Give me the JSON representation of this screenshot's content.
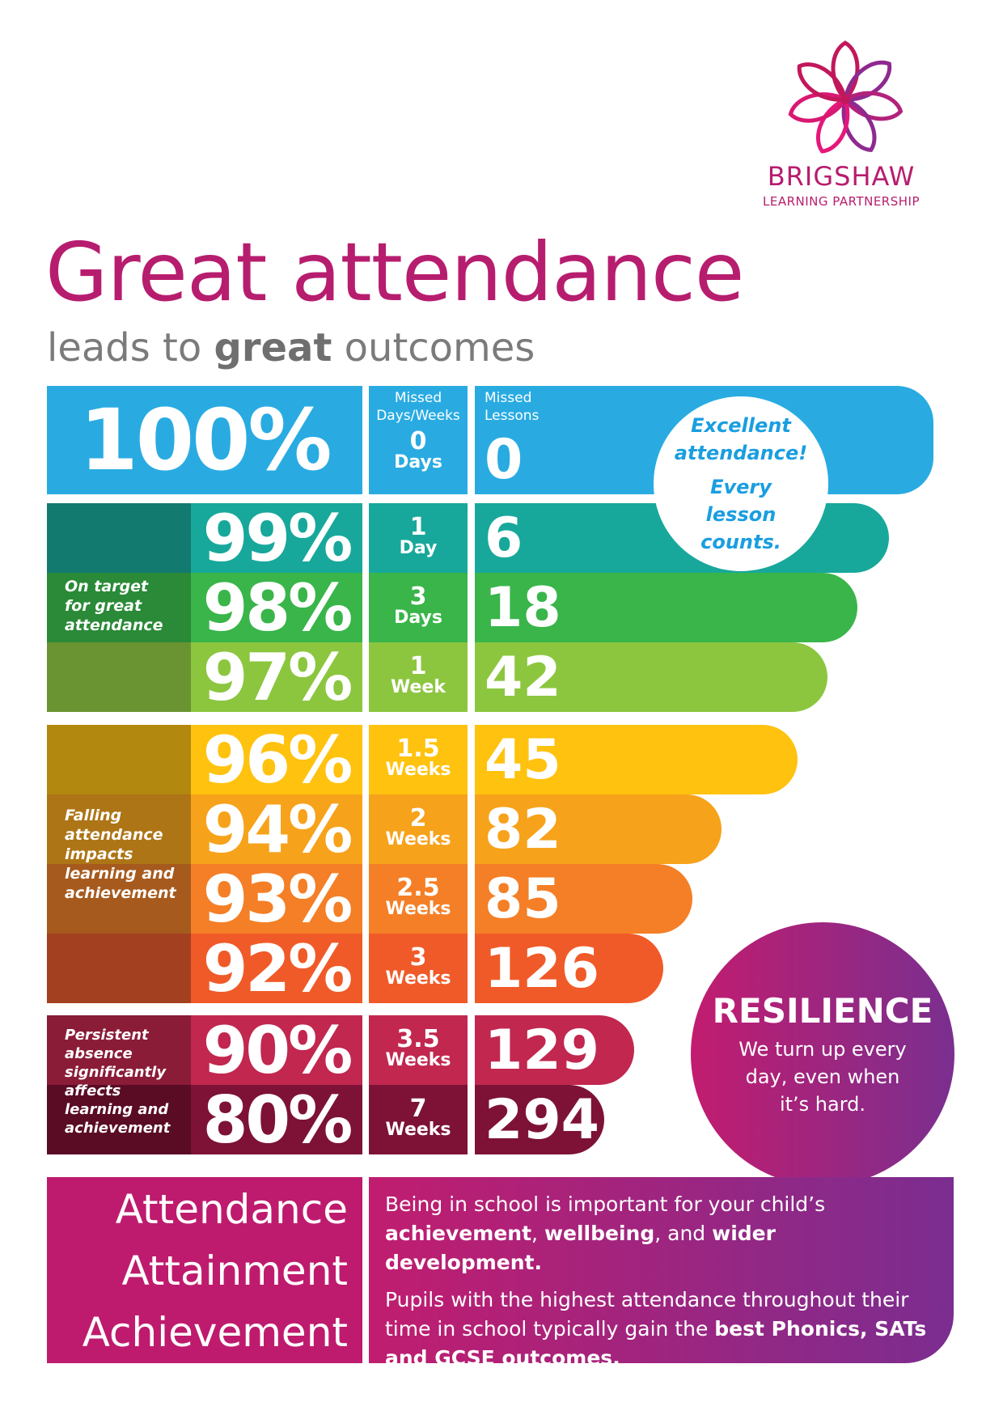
{
  "logo": {
    "name": "BRIGSHAW",
    "subtitle": "LEARNING PARTNERSHIP"
  },
  "headline": "Great attendance",
  "subline": {
    "before": "leads to ",
    "bold": "great",
    "after": " outcomes"
  },
  "columns": {
    "missed_days": "Missed Days/Weeks",
    "missed_lessons": "Missed Lessons"
  },
  "rows": [
    {
      "pct": "100%",
      "n": "0",
      "u": "Days",
      "lessons": "0"
    },
    {
      "pct": "99%",
      "n": "1",
      "u": "Day",
      "lessons": "6"
    },
    {
      "pct": "98%",
      "n": "3",
      "u": "Days",
      "lessons": "18"
    },
    {
      "pct": "97%",
      "n": "1",
      "u": "Week",
      "lessons": "42"
    },
    {
      "pct": "96%",
      "n": "1.5",
      "u": "Weeks",
      "lessons": "45"
    },
    {
      "pct": "94%",
      "n": "2",
      "u": "Weeks",
      "lessons": "82"
    },
    {
      "pct": "93%",
      "n": "2.5",
      "u": "Weeks",
      "lessons": "85"
    },
    {
      "pct": "92%",
      "n": "3",
      "u": "Weeks",
      "lessons": "126"
    },
    {
      "pct": "90%",
      "n": "3.5",
      "u": "Weeks",
      "lessons": "129"
    },
    {
      "pct": "80%",
      "n": "7",
      "u": "Weeks",
      "lessons": "294"
    }
  ],
  "groups": {
    "target": "On target for great attendance",
    "falling": "Falling attendance impacts learning and achievement",
    "persistent": "Persistent absence significantly affects learning and achievement"
  },
  "excellent": {
    "line1": "Excellent attendance!",
    "line2": "Every lesson counts."
  },
  "resilience": {
    "title": "RESILIENCE",
    "text": "We turn up every day, even when it’s hard."
  },
  "footer": {
    "words": [
      "Attendance",
      "Attainment",
      "Achievement"
    ],
    "p1": {
      "a": "Being in school is important for your child’s ",
      "b1": "achievement",
      "c": ", ",
      "b2": "wellbeing",
      "d": ", and ",
      "b3": "wider development."
    },
    "p2": {
      "a": "Pupils with the highest attendance throughout their time in school typically gain the ",
      "b": "best Phonics, SATs and GCSE outcomes."
    }
  },
  "colors": {
    "brand": "#b71d6e",
    "rows": [
      "#29abe2",
      "#17a89b",
      "#39b54a",
      "#8cc63f",
      "#ffc20e",
      "#f7a21b",
      "#f47f26",
      "#f05a28",
      "#c1274f",
      "#7d1236"
    ],
    "labels": [
      "#29abe2",
      "#137a70",
      "#2a8a37",
      "#6a9432",
      "#b2880e",
      "#ad7516",
      "#a65a1e",
      "#a3401f",
      "#8a1c38",
      "#5a0c25"
    ]
  }
}
